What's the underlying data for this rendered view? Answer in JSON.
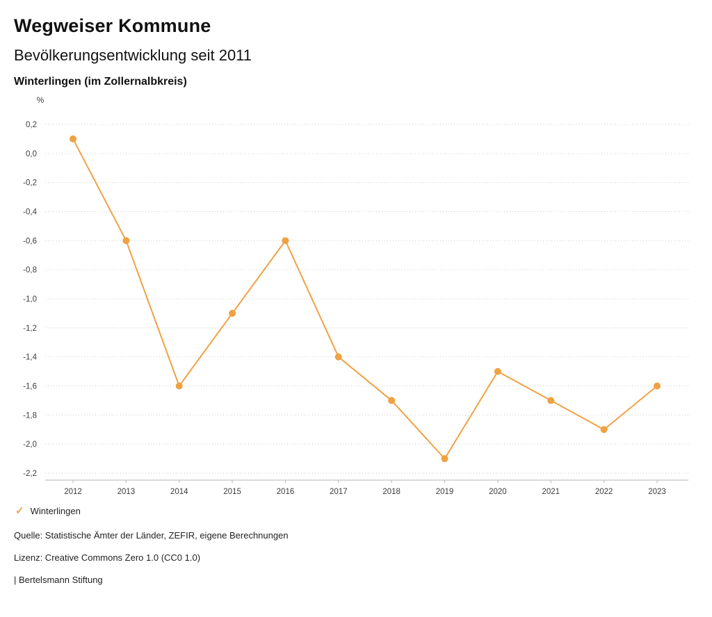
{
  "header": {
    "title": "Wegweiser Kommune",
    "subtitle": "Bevölkerungsentwicklung seit 2011",
    "region": "Winterlingen (im Zollernalbkreis)"
  },
  "chart_data": {
    "type": "line",
    "title": "Bevölkerungsentwicklung seit 2011",
    "unit_label": "%",
    "x": [
      2012,
      2013,
      2014,
      2015,
      2016,
      2017,
      2018,
      2019,
      2020,
      2021,
      2022,
      2023
    ],
    "series": [
      {
        "name": "Winterlingen",
        "values": [
          0.1,
          -0.6,
          -1.6,
          -1.1,
          -0.6,
          -1.4,
          -1.7,
          -2.1,
          -1.5,
          -1.7,
          -1.9,
          -1.6
        ],
        "color": "#F0A142"
      }
    ],
    "ylim": [
      -2.2,
      0.2
    ],
    "ytick_step": 0.2,
    "ytick_decimal_separator": ",",
    "grid": "dotted-horizontal",
    "legend_position": "bottom-left"
  },
  "legend": {
    "items": [
      {
        "label": "Winterlingen",
        "color": "#F0A142",
        "marker_icon": "check-icon",
        "marker_glyph": "✓"
      }
    ]
  },
  "footer": {
    "source": "Quelle: Statistische Ämter der Länder, ZEFIR, eigene Berechnungen",
    "license": "Lizenz: Creative Commons Zero 1.0 (CC0 1.0)",
    "attribution": "| Bertelsmann Stiftung"
  },
  "colors": {
    "accent": "#F0A142",
    "grid": "#c9c9c9",
    "axis": "#b5b5b5",
    "tick_text": "#3c3c3c"
  }
}
